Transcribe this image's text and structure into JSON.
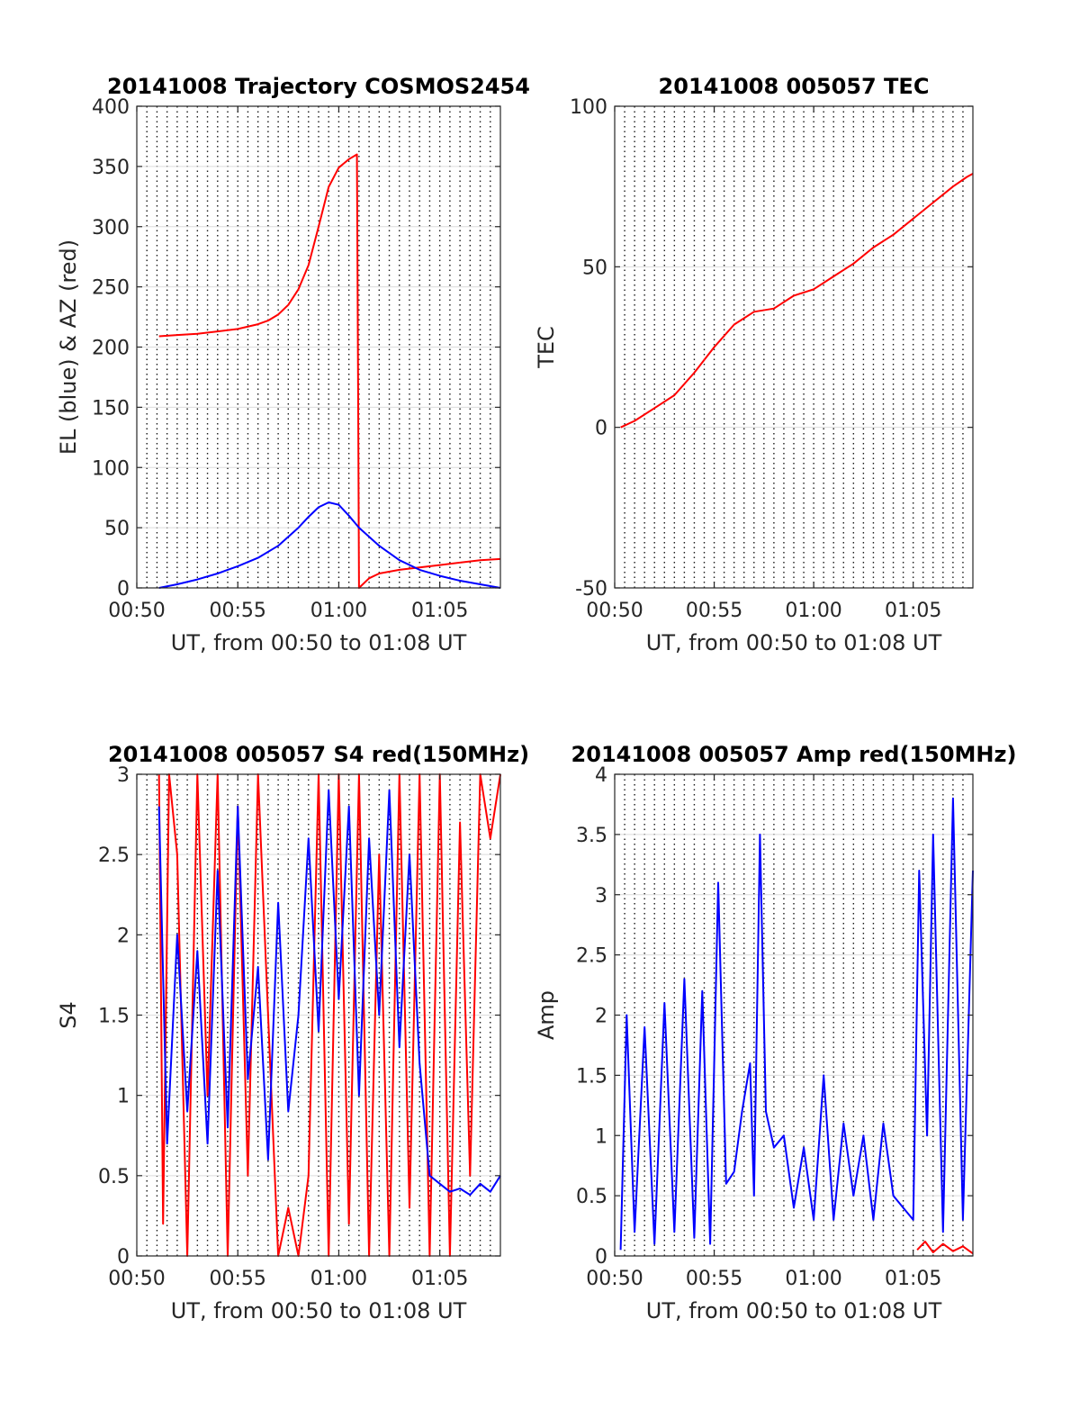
{
  "chart_data": [
    {
      "type": "line",
      "title": "20141008 Trajectory COSMOS2454",
      "xlabel": "UT, from 00:50 to 01:08 UT",
      "ylabel": "EL (blue) & AZ (red)",
      "xlim": [
        0,
        18
      ],
      "ylim": [
        0,
        400
      ],
      "x_ticks": [
        0,
        5,
        10,
        15
      ],
      "x_tick_labels": [
        "00:50",
        "00:55",
        "01:00",
        "01:05"
      ],
      "y_ticks": [
        0,
        50,
        100,
        150,
        200,
        250,
        300,
        350,
        400
      ],
      "y_tick_labels": [
        "0",
        "50",
        "100",
        "150",
        "200",
        "250",
        "300",
        "350",
        "400"
      ],
      "grid": "dotted vertical every 30 s, solid horizontal at ticks",
      "series": [
        {
          "name": "AZ",
          "color": "#ff0000",
          "x": [
            1.1,
            2,
            3,
            4,
            5,
            6,
            6.5,
            7,
            7.5,
            8,
            8.5,
            9,
            9.5,
            10,
            10.5,
            10.9,
            10.95,
            11.0,
            11.5,
            12,
            13,
            14,
            15,
            16,
            17,
            18
          ],
          "y": [
            209,
            210,
            211,
            213,
            215,
            219,
            222,
            227,
            235,
            248,
            268,
            300,
            333,
            349,
            356,
            360,
            180,
            0,
            8,
            12,
            15,
            17,
            19,
            21,
            23,
            24
          ]
        },
        {
          "name": "EL",
          "color": "#0000ff",
          "x": [
            1.1,
            2,
            3,
            4,
            5,
            6,
            7,
            8,
            8.5,
            9,
            9.5,
            10,
            10.5,
            11,
            12,
            13,
            14,
            15,
            16,
            17,
            18
          ],
          "y": [
            0,
            3,
            7,
            12,
            18,
            25,
            35,
            50,
            59,
            67,
            71,
            69,
            60,
            50,
            35,
            23,
            15,
            10,
            6,
            3,
            0
          ]
        }
      ]
    },
    {
      "type": "line",
      "title": "20141008 005057 TEC",
      "xlabel": "UT, from 00:50 to 01:08 UT",
      "ylabel": "TEC",
      "xlim": [
        0,
        18
      ],
      "ylim": [
        -50,
        100
      ],
      "x_ticks": [
        0,
        5,
        10,
        15
      ],
      "x_tick_labels": [
        "00:50",
        "00:55",
        "01:00",
        "01:05"
      ],
      "y_ticks": [
        -50,
        0,
        50,
        100
      ],
      "y_tick_labels": [
        "-50",
        "0",
        "50",
        "100"
      ],
      "series": [
        {
          "name": "TEC",
          "color": "#ff0000",
          "x": [
            0.3,
            1,
            2,
            3,
            4,
            5,
            6,
            7,
            8,
            9,
            10,
            11,
            12,
            13,
            14,
            15,
            16,
            17,
            17.7,
            18
          ],
          "y": [
            0,
            2,
            6,
            10,
            17,
            25,
            32,
            36,
            37,
            41,
            43,
            47,
            51,
            56,
            60,
            65,
            70,
            75,
            78,
            79
          ]
        }
      ]
    },
    {
      "type": "line",
      "title": "20141008 005057 S4 red(150MHz)",
      "xlabel": "UT, from 00:50 to 01:08 UT",
      "ylabel": "S4",
      "xlim": [
        0,
        18
      ],
      "ylim": [
        0,
        3
      ],
      "x_ticks": [
        0,
        5,
        10,
        15
      ],
      "x_tick_labels": [
        "00:50",
        "00:55",
        "01:00",
        "01:05"
      ],
      "y_ticks": [
        0,
        0.5,
        1,
        1.5,
        2,
        2.5,
        3
      ],
      "y_tick_labels": [
        "0",
        "0.5",
        "1",
        "1.5",
        "2",
        "2.5",
        "3"
      ],
      "series": [
        {
          "name": "S4 red (150MHz)",
          "color": "#ff0000",
          "x": [
            1.1,
            1.3,
            1.6,
            2,
            2.5,
            3,
            3.5,
            4,
            4.5,
            5,
            5.5,
            6,
            6.5,
            7,
            7.5,
            8,
            8.5,
            9,
            9.5,
            10,
            10.5,
            11,
            11.5,
            12,
            12.5,
            13,
            13.5,
            14,
            14.5,
            15,
            15.5,
            16,
            16.5,
            17,
            17.5,
            18
          ],
          "y": [
            3,
            0.2,
            3,
            2.5,
            0,
            3,
            1,
            3,
            0,
            2.8,
            0.5,
            3,
            1.5,
            0,
            0.3,
            0,
            0.5,
            3,
            0,
            3,
            0.2,
            3,
            0,
            2.5,
            0,
            3,
            0.3,
            3,
            0,
            3,
            0,
            2.7,
            0.5,
            3,
            2.6,
            3
          ]
        },
        {
          "name": "S4 blue",
          "color": "#0000ff",
          "x": [
            1.1,
            1.5,
            2,
            2.5,
            3,
            3.5,
            4,
            4.5,
            5,
            5.5,
            6,
            6.5,
            7,
            7.5,
            8,
            8.5,
            9,
            9.5,
            10,
            10.5,
            11,
            11.5,
            12,
            12.5,
            13,
            13.5,
            14,
            14.5,
            15,
            15.5,
            16,
            16.5,
            17,
            17.5,
            18
          ],
          "y": [
            2.8,
            0.7,
            2.0,
            0.9,
            1.9,
            0.7,
            2.4,
            0.8,
            2.8,
            1.1,
            1.8,
            0.6,
            2.2,
            0.9,
            1.5,
            2.6,
            1.4,
            2.9,
            1.6,
            2.8,
            1.0,
            2.6,
            1.5,
            2.9,
            1.3,
            2.5,
            1.2,
            0.5,
            0.45,
            0.4,
            0.42,
            0.38,
            0.45,
            0.4,
            0.5
          ]
        }
      ]
    },
    {
      "type": "line",
      "title": "20141008 005057 Amp red(150MHz)",
      "xlabel": "UT, from 00:50 to 01:08 UT",
      "ylabel": "Amp",
      "xlim": [
        0,
        18
      ],
      "ylim": [
        0,
        4
      ],
      "x_ticks": [
        0,
        5,
        10,
        15
      ],
      "x_tick_labels": [
        "00:50",
        "00:55",
        "01:00",
        "01:05"
      ],
      "y_ticks": [
        0,
        0.5,
        1,
        1.5,
        2,
        2.5,
        3,
        3.5,
        4
      ],
      "y_tick_labels": [
        "0",
        "0.5",
        "1",
        "1.5",
        "2",
        "2.5",
        "3",
        "3.5",
        "4"
      ],
      "series": [
        {
          "name": "Amp blue",
          "color": "#0000ff",
          "x": [
            0.3,
            0.6,
            1,
            1.5,
            2,
            2.5,
            3,
            3.5,
            4,
            4.4,
            4.8,
            5.2,
            5.6,
            6,
            6.4,
            6.8,
            7.0,
            7.3,
            7.6,
            8,
            8.5,
            9,
            9.5,
            10,
            10.5,
            11,
            11.5,
            12,
            12.5,
            13,
            13.5,
            14,
            14.5,
            15,
            15.3,
            15.7,
            16,
            16.5,
            17,
            17.5,
            18
          ],
          "y": [
            0.05,
            2.0,
            0.2,
            1.9,
            0.1,
            2.1,
            0.2,
            2.3,
            0.15,
            2.2,
            0.1,
            3.1,
            0.6,
            0.7,
            1.2,
            1.6,
            0.5,
            3.5,
            1.2,
            0.9,
            1.0,
            0.4,
            0.9,
            0.3,
            1.5,
            0.3,
            1.1,
            0.5,
            1.0,
            0.3,
            1.1,
            0.5,
            0.4,
            0.3,
            3.2,
            1.0,
            3.5,
            0.2,
            3.8,
            0.3,
            3.2
          ]
        },
        {
          "name": "Amp red (150MHz)",
          "color": "#ff0000",
          "x": [
            15.2,
            15.6,
            16,
            16.5,
            17,
            17.5,
            18
          ],
          "y": [
            0.05,
            0.12,
            0.03,
            0.1,
            0.04,
            0.08,
            0.02
          ]
        }
      ]
    }
  ]
}
